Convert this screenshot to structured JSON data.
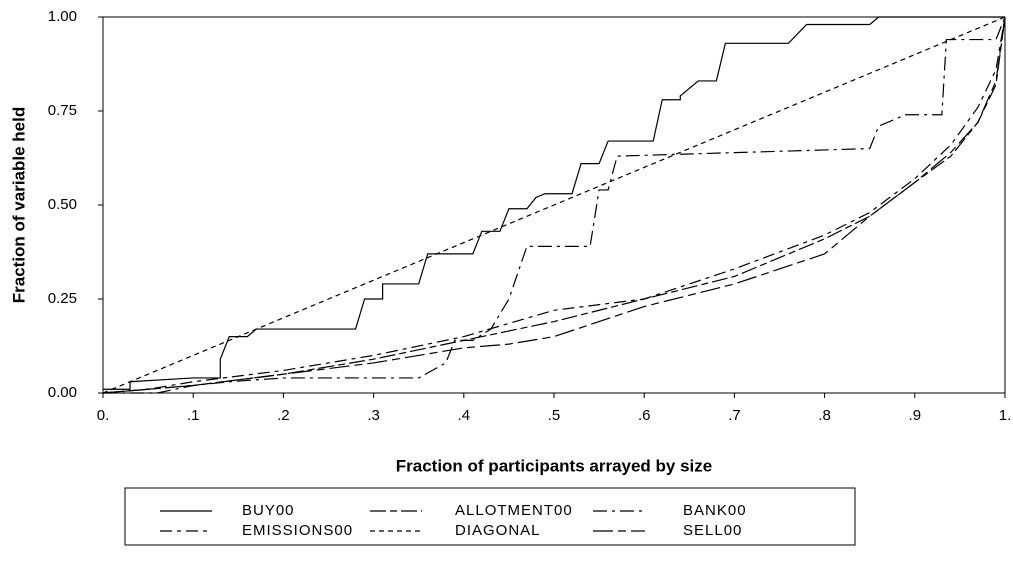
{
  "chart_data": {
    "type": "line",
    "xlabel": "Fraction of participants arrayed by size",
    "ylabel": "Fraction of variable held",
    "xlim": [
      0,
      1
    ],
    "ylim": [
      0,
      1
    ],
    "xticks": [
      {
        "value": 0,
        "label": "0."
      },
      {
        "value": 0.1,
        "label": ".1"
      },
      {
        "value": 0.2,
        "label": ".2"
      },
      {
        "value": 0.3,
        "label": ".3"
      },
      {
        "value": 0.4,
        "label": ".4"
      },
      {
        "value": 0.5,
        "label": ".5"
      },
      {
        "value": 0.6,
        "label": ".6"
      },
      {
        "value": 0.7,
        "label": ".7"
      },
      {
        "value": 0.8,
        "label": ".8"
      },
      {
        "value": 0.9,
        "label": ".9"
      },
      {
        "value": 1,
        "label": "1."
      }
    ],
    "yticks": [
      {
        "value": 0,
        "label": "0.00"
      },
      {
        "value": 0.25,
        "label": "0.25"
      },
      {
        "value": 0.5,
        "label": "0.50"
      },
      {
        "value": 0.75,
        "label": "0.75"
      },
      {
        "value": 1,
        "label": "1.00"
      }
    ],
    "series": [
      {
        "name": "BUY00",
        "color": "#000000",
        "dash": "none",
        "x": [
          0,
          0.03,
          0.03,
          0.1,
          0.13,
          0.13,
          0.14,
          0.16,
          0.17,
          0.28,
          0.29,
          0.31,
          0.31,
          0.35,
          0.36,
          0.41,
          0.42,
          0.44,
          0.45,
          0.47,
          0.48,
          0.49,
          0.52,
          0.53,
          0.55,
          0.56,
          0.61,
          0.62,
          0.64,
          0.64,
          0.66,
          0.68,
          0.69,
          0.76,
          0.78,
          0.85,
          0.86,
          1
        ],
        "values": [
          0.01,
          0.01,
          0.03,
          0.04,
          0.04,
          0.09,
          0.15,
          0.15,
          0.17,
          0.17,
          0.25,
          0.25,
          0.29,
          0.29,
          0.37,
          0.37,
          0.43,
          0.43,
          0.49,
          0.49,
          0.52,
          0.53,
          0.53,
          0.61,
          0.61,
          0.67,
          0.67,
          0.78,
          0.78,
          0.79,
          0.83,
          0.83,
          0.93,
          0.93,
          0.98,
          0.98,
          1,
          1
        ]
      },
      {
        "name": "EMISSIONS00",
        "color": "#000000",
        "dash": "12,5,4,5",
        "x": [
          0,
          0.05,
          0.1,
          0.2,
          0.3,
          0.4,
          0.5,
          0.6,
          0.7,
          0.8,
          0.85,
          0.9,
          0.94,
          0.97,
          0.99,
          1
        ],
        "values": [
          0,
          0.01,
          0.03,
          0.06,
          0.1,
          0.15,
          0.22,
          0.25,
          0.33,
          0.42,
          0.48,
          0.57,
          0.66,
          0.76,
          0.86,
          1
        ]
      },
      {
        "name": "ALLOTMENT00",
        "color": "#000000",
        "dash": "16,4,7,4",
        "x": [
          0,
          0.05,
          0.1,
          0.2,
          0.3,
          0.4,
          0.5,
          0.6,
          0.7,
          0.8,
          0.85,
          0.9,
          0.94,
          0.97,
          0.99,
          1
        ],
        "values": [
          0,
          0.01,
          0.02,
          0.05,
          0.09,
          0.14,
          0.19,
          0.25,
          0.31,
          0.41,
          0.47,
          0.56,
          0.63,
          0.72,
          0.82,
          1
        ]
      },
      {
        "name": "DIAGONAL",
        "color": "#000000",
        "dash": "5,4",
        "x": [
          0,
          1
        ],
        "values": [
          0,
          1
        ]
      },
      {
        "name": "BANK00",
        "color": "#000000",
        "dash": "14,5,3,5",
        "x": [
          0,
          0.06,
          0.1,
          0.14,
          0.2,
          0.35,
          0.38,
          0.39,
          0.41,
          0.43,
          0.45,
          0.47,
          0.54,
          0.55,
          0.56,
          0.57,
          0.85,
          0.86,
          0.89,
          0.93,
          0.935,
          0.99,
          1
        ],
        "values": [
          0,
          0,
          0.02,
          0.03,
          0.04,
          0.04,
          0.08,
          0.14,
          0.14,
          0.17,
          0.25,
          0.39,
          0.39,
          0.54,
          0.54,
          0.63,
          0.65,
          0.71,
          0.74,
          0.74,
          0.94,
          0.94,
          1
        ]
      },
      {
        "name": "SELL00",
        "color": "#000000",
        "dash": "20,5,8,5",
        "x": [
          0,
          0.05,
          0.1,
          0.2,
          0.3,
          0.4,
          0.45,
          0.5,
          0.6,
          0.7,
          0.8,
          0.85,
          0.9,
          0.94,
          0.97,
          0.99,
          1
        ],
        "values": [
          0,
          0.01,
          0.02,
          0.05,
          0.08,
          0.12,
          0.13,
          0.15,
          0.23,
          0.29,
          0.37,
          0.47,
          0.56,
          0.64,
          0.72,
          0.83,
          1
        ]
      }
    ]
  }
}
